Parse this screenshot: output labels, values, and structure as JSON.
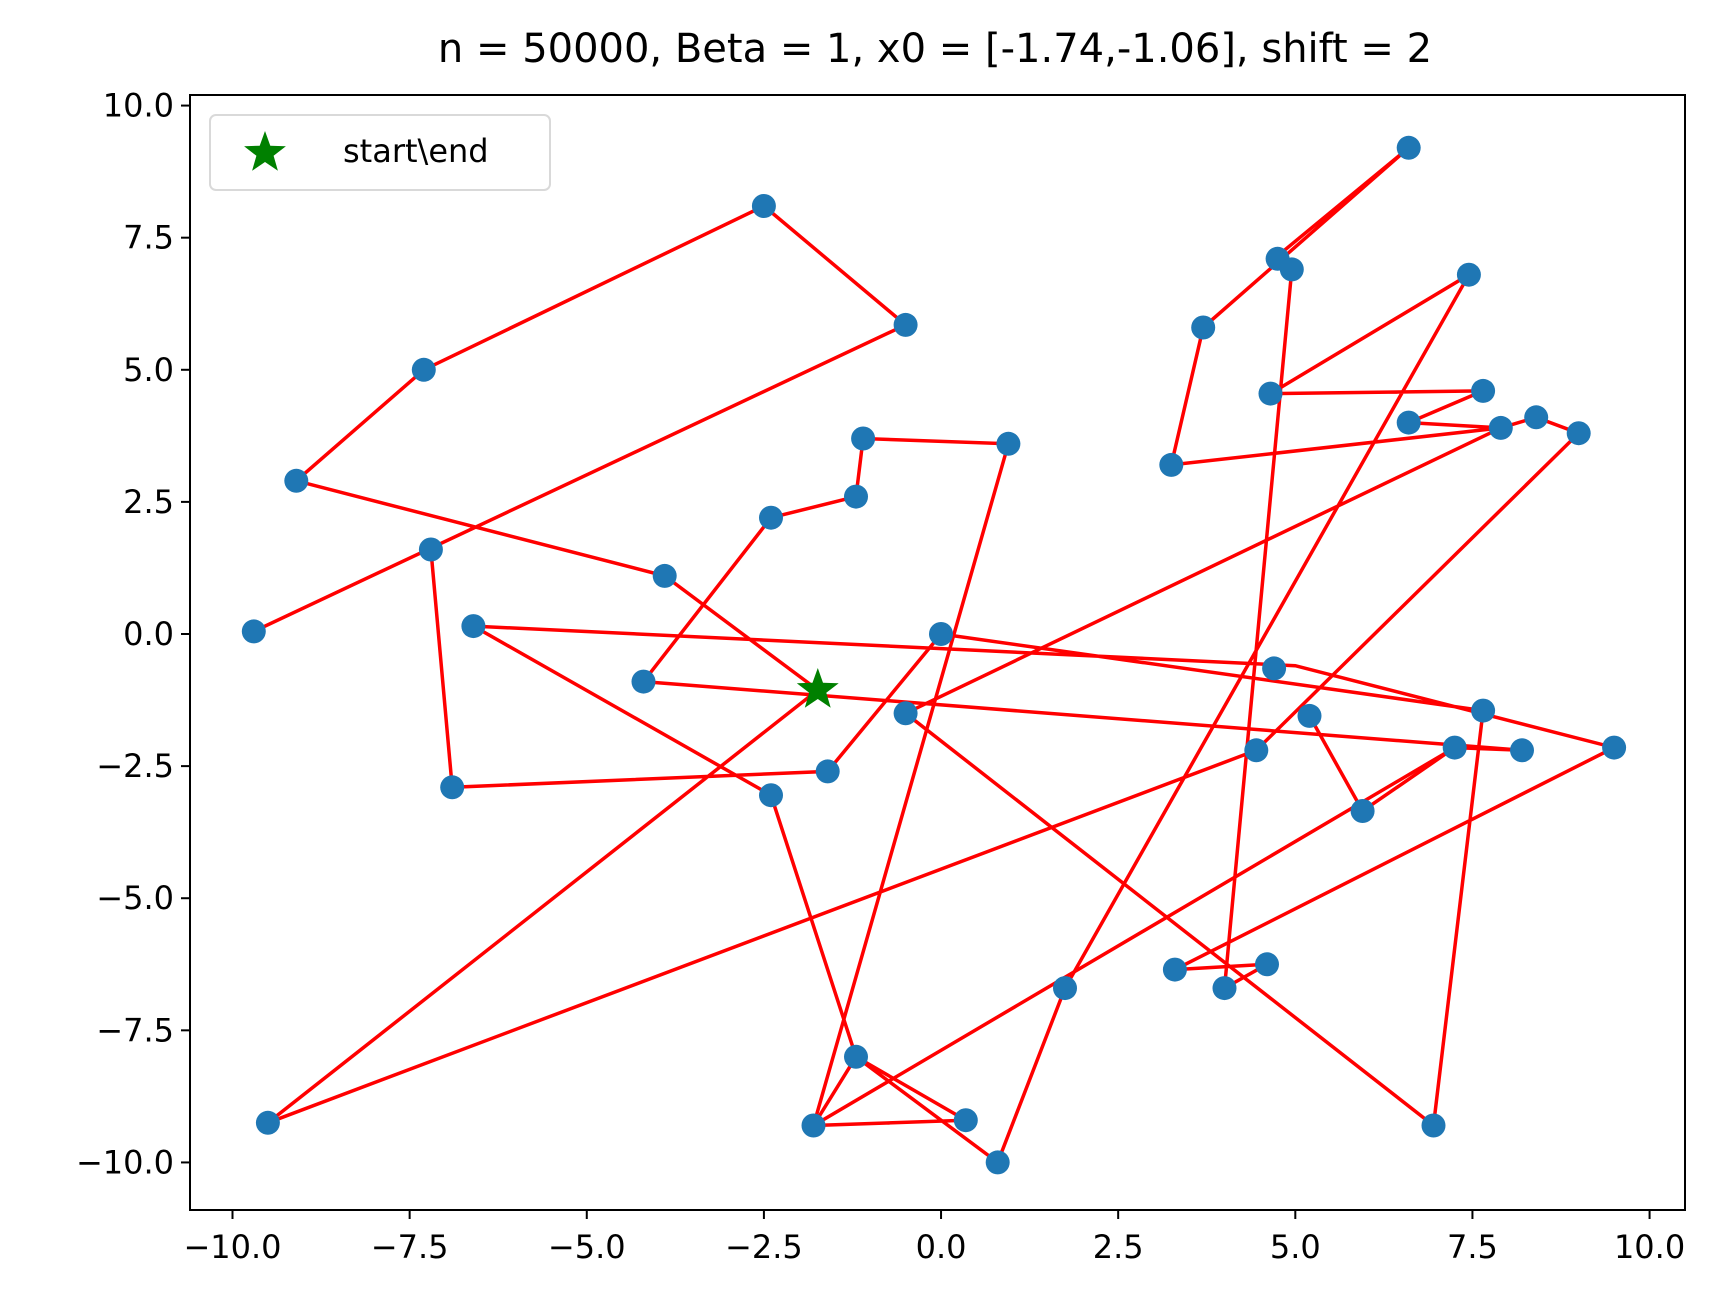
{
  "chart_data": {
    "type": "scatter",
    "title": "n = 50000, Beta = 1, x0 = [-1.74,-1.06], shift = 2",
    "xlabel": "",
    "ylabel": "",
    "xlim": [
      -10.6,
      10.5
    ],
    "ylim": [
      -10.9,
      10.2
    ],
    "xticks": [
      -10.0,
      -7.5,
      -5.0,
      -2.5,
      0.0,
      2.5,
      5.0,
      7.5,
      10.0
    ],
    "yticks": [
      -10.0,
      -7.5,
      -5.0,
      -2.5,
      0.0,
      2.5,
      5.0,
      7.5,
      10.0
    ],
    "xtick_labels": [
      "−10.0",
      "−7.5",
      "−5.0",
      "−2.5",
      "0.0",
      "2.5",
      "5.0",
      "7.5",
      "10.0"
    ],
    "ytick_labels": [
      "−10.0",
      "−7.5",
      "−5.0",
      "−2.5",
      "0.0",
      "2.5",
      "5.0",
      "7.5",
      "10.0"
    ],
    "grid": false,
    "legend_position": "top-left",
    "legend": [
      {
        "label": "start\\end",
        "marker": "star",
        "color": "#008000"
      }
    ],
    "points": {
      "color": "#1f77b4",
      "x": [
        -9.7,
        -9.5,
        -9.1,
        -7.3,
        -7.2,
        -6.9,
        -6.6,
        -4.2,
        -3.9,
        -2.5,
        -2.4,
        -2.4,
        -1.8,
        -1.6,
        -1.2,
        -1.2,
        -1.1,
        -0.5,
        -0.5,
        0.0,
        0.35,
        0.8,
        0.95,
        1.75,
        3.25,
        3.3,
        3.7,
        4.0,
        4.45,
        4.6,
        4.65,
        4.7,
        4.75,
        4.95,
        5.2,
        5.95,
        6.6,
        6.6,
        6.95,
        7.25,
        7.45,
        7.65,
        7.65,
        7.9,
        8.2,
        8.4,
        9.0,
        9.5
      ],
      "y": [
        0.05,
        -9.25,
        2.9,
        5.0,
        1.6,
        -2.9,
        0.15,
        -0.9,
        1.1,
        8.1,
        2.2,
        -3.05,
        -9.3,
        -2.6,
        2.6,
        -8.0,
        3.7,
        5.85,
        -1.5,
        0.0,
        -9.2,
        -10.0,
        3.6,
        -6.7,
        3.2,
        -6.35,
        5.8,
        -6.7,
        -2.2,
        -6.25,
        4.55,
        -0.65,
        7.1,
        6.9,
        -1.55,
        -3.35,
        9.2,
        4.0,
        -9.3,
        -2.15,
        6.8,
        4.6,
        -1.45,
        3.9,
        -2.2,
        4.1,
        3.8,
        -2.15
      ]
    },
    "path": {
      "color": "#ff0000",
      "x": [
        -1.74,
        -3.9,
        -9.1,
        -7.3,
        -2.5,
        -0.5,
        -9.7
      ],
      "y": [
        -1.06,
        1.1,
        2.9,
        5.0,
        8.1,
        5.85,
        0.05
      ]
    },
    "path2": {
      "color": "#ff0000",
      "x": [
        -7.2,
        -6.9,
        -1.6,
        0.0,
        7.65,
        6.95,
        -0.5,
        7.9,
        6.6,
        7.65,
        4.65,
        7.45,
        1.75,
        0.8,
        -1.2,
        -1.8,
        0.35,
        -1.2,
        -2.4,
        -6.6,
        5.0,
        9.5,
        3.3,
        4.6,
        4.0,
        4.95,
        4.7,
        6.6,
        3.7,
        3.25,
        7.9,
        8.4,
        9.0,
        4.45,
        -9.5,
        -1.74
      ],
      "y": [
        1.6,
        -2.9,
        -2.6,
        0.0,
        -1.45,
        -9.3,
        -1.5,
        3.9,
        4.0,
        4.6,
        4.55,
        6.8,
        -6.7,
        -10.0,
        -8.0,
        -9.3,
        -9.2,
        -8.0,
        -3.05,
        0.15,
        -0.6,
        -2.15,
        -6.35,
        -6.25,
        -6.7,
        6.9,
        7.1,
        9.2,
        5.8,
        3.2,
        3.9,
        4.1,
        3.8,
        -2.2,
        -9.25,
        -1.06
      ]
    },
    "path3": {
      "color": "#ff0000",
      "x": [
        -4.2,
        -2.4,
        -1.2,
        -1.1,
        0.95,
        -1.8,
        7.25,
        8.2,
        -4.2
      ],
      "y": [
        -0.9,
        2.2,
        2.6,
        3.7,
        3.6,
        -9.3,
        -2.15,
        -2.2,
        -0.9
      ]
    },
    "path4": {
      "color": "#ff0000",
      "x": [
        5.2,
        5.95,
        7.25
      ],
      "y": [
        -1.55,
        -3.35,
        -2.15
      ]
    },
    "start_end": {
      "x": -1.74,
      "y": -1.06,
      "color": "#008000"
    }
  }
}
